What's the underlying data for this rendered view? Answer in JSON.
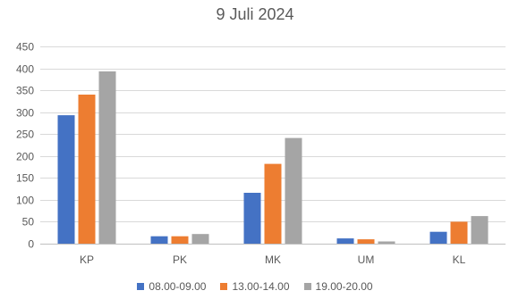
{
  "chart_data": {
    "type": "bar",
    "title": "9 Juli 2024",
    "xlabel": "",
    "ylabel": "",
    "categories": [
      "KP",
      "PK",
      "MK",
      "UM",
      "KL"
    ],
    "ylim": [
      0,
      450
    ],
    "yticks": [
      0,
      50,
      100,
      150,
      200,
      250,
      300,
      350,
      400,
      450
    ],
    "grid": true,
    "legend_position": "bottom",
    "series": [
      {
        "name": "08.00-09.00",
        "color": "#4472C4",
        "values": [
          293,
          17,
          116,
          12,
          27
        ]
      },
      {
        "name": "13.00-14.00",
        "color": "#ED7D31",
        "values": [
          340,
          17,
          182,
          10,
          50
        ]
      },
      {
        "name": "19.00-20.00",
        "color": "#A5A5A5",
        "values": [
          393,
          22,
          241,
          5,
          63
        ]
      }
    ]
  }
}
